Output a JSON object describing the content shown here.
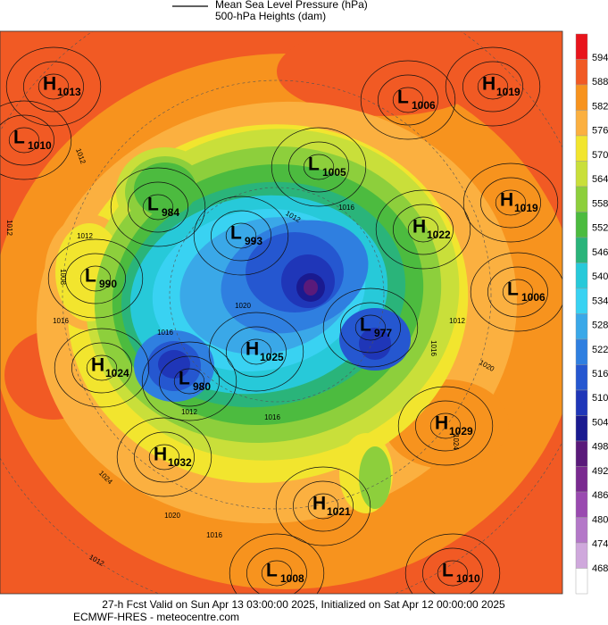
{
  "header": {
    "lines": [
      "Mean Sea Level Pressure (hPa)",
      "500-hPa Heights (dam)"
    ]
  },
  "colorbar": {
    "levels": [
      594,
      588,
      582,
      576,
      570,
      564,
      558,
      552,
      546,
      540,
      534,
      528,
      522,
      516,
      510,
      504,
      498,
      492,
      486,
      480,
      474,
      468
    ],
    "colors": [
      "#e8141c",
      "#f15a24",
      "#f7931e",
      "#fbb040",
      "#f2e52e",
      "#c9df3a",
      "#8dcf3c",
      "#4cbb3f",
      "#2ab47a",
      "#27c9d9",
      "#39d2f2",
      "#3aa8e8",
      "#2f7fe0",
      "#2557d0",
      "#1f36b8",
      "#1a1a90",
      "#5a1a7a",
      "#7a2a90",
      "#9a4ab0",
      "#b478c8",
      "#cfa8dc",
      "#ffffff"
    ]
  },
  "centers": [
    {
      "letter": "H",
      "value": 1013
    },
    {
      "letter": "L",
      "value": 1010
    },
    {
      "letter": "L",
      "value": 1006
    },
    {
      "letter": "H",
      "value": 1019
    },
    {
      "letter": "L",
      "value": 1005
    },
    {
      "letter": "H",
      "value": 1019
    },
    {
      "letter": "L",
      "value": 984
    },
    {
      "letter": "H",
      "value": 1022
    },
    {
      "letter": "L",
      "value": 993
    },
    {
      "letter": "L",
      "value": 990
    },
    {
      "letter": "L",
      "value": 1006
    },
    {
      "letter": "L",
      "value": 977
    },
    {
      "letter": "H",
      "value": 1024
    },
    {
      "letter": "H",
      "value": 1025
    },
    {
      "letter": "L",
      "value": 980
    },
    {
      "letter": "H",
      "value": 1029
    },
    {
      "letter": "H",
      "value": 1032
    },
    {
      "letter": "H",
      "value": 1021
    },
    {
      "letter": "L",
      "value": 1008
    },
    {
      "letter": "L",
      "value": 1010
    }
  ],
  "contour_labels": [
    1012,
    1012,
    1012,
    1008,
    1016,
    1012,
    1016,
    1020,
    1016,
    1012,
    1016,
    1012,
    1020,
    1016,
    1024,
    1024,
    1020,
    1016,
    1012
  ],
  "footer": {
    "lines": [
      "27-h Fcst Valid on Sun Apr 13 03:00:00 2025, Initialized on Sat Apr 12 00:00:00 2025",
      "ECMWF-HRES  - meteocentre.com"
    ]
  }
}
